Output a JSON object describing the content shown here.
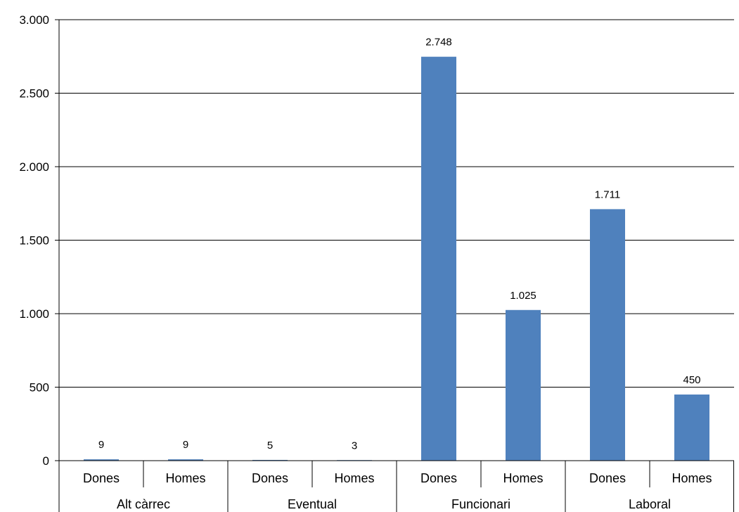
{
  "chart_data": {
    "type": "bar",
    "groups": [
      {
        "label": "Alt càrrec",
        "categories": [
          {
            "label": "Dones",
            "value": 9,
            "value_label": "9"
          },
          {
            "label": "Homes",
            "value": 9,
            "value_label": "9"
          }
        ]
      },
      {
        "label": "Eventual",
        "categories": [
          {
            "label": "Dones",
            "value": 5,
            "value_label": "5"
          },
          {
            "label": "Homes",
            "value": 3,
            "value_label": "3"
          }
        ]
      },
      {
        "label": "Funcionari",
        "categories": [
          {
            "label": "Dones",
            "value": 2748,
            "value_label": "2.748"
          },
          {
            "label": "Homes",
            "value": 1025,
            "value_label": "1.025"
          }
        ]
      },
      {
        "label": "Laboral",
        "categories": [
          {
            "label": "Dones",
            "value": 1711,
            "value_label": "1.711"
          },
          {
            "label": "Homes",
            "value": 450,
            "value_label": "450"
          }
        ]
      }
    ],
    "y_ticks": [
      {
        "value": 0,
        "label": "0"
      },
      {
        "value": 500,
        "label": "500"
      },
      {
        "value": 1000,
        "label": "1.000"
      },
      {
        "value": 1500,
        "label": "1.500"
      },
      {
        "value": 2000,
        "label": "2.000"
      },
      {
        "value": 2500,
        "label": "2.500"
      },
      {
        "value": 3000,
        "label": "3.000"
      }
    ],
    "ylim": [
      0,
      3000
    ],
    "grid": true,
    "legend": "none",
    "bar_color": "#4F81BD"
  }
}
